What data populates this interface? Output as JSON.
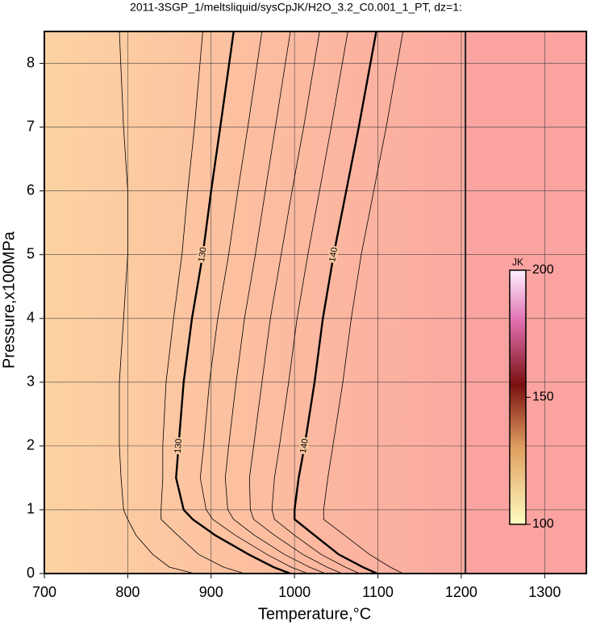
{
  "chart_data": {
    "type": "contour",
    "title": "2011-3SGP_1/meltsliquid/sysCpJK/H2O_3.2_C0.001_1_PT, dz=1:",
    "xlabel": "Temperature,°C",
    "ylabel": "Pressure,x100MPa",
    "xlim": [
      700,
      1350
    ],
    "ylim": [
      0,
      8.5
    ],
    "xticks": [
      700,
      800,
      900,
      1000,
      1100,
      1200,
      1300
    ],
    "yticks": [
      0,
      1,
      2,
      3,
      4,
      5,
      6,
      7,
      8
    ],
    "grid": true,
    "boundary_x": 1205,
    "contours": [
      {
        "level": 125,
        "bold": false,
        "y": [
          8.5,
          7,
          6,
          5,
          4,
          3,
          2,
          1.5,
          1,
          0.85,
          0.6,
          0.3,
          0.1,
          0
        ],
        "x": [
          790,
          795,
          800,
          800,
          795,
          790,
          790,
          792,
          795,
          800,
          810,
          830,
          850,
          880
        ]
      },
      {
        "level": 128,
        "bold": false,
        "y": [
          8.5,
          7,
          6,
          5,
          4,
          3,
          2,
          1.5,
          1,
          0.85,
          0.6,
          0.3,
          0.1,
          0
        ],
        "x": [
          890,
          880,
          872,
          865,
          855,
          846,
          842,
          842,
          840,
          840,
          860,
          885,
          915,
          940
        ]
      },
      {
        "level": 130,
        "bold": true,
        "label": "130",
        "y": [
          8.5,
          7,
          6,
          5,
          4,
          3,
          2,
          1.5,
          1,
          0.85,
          0.6,
          0.3,
          0.1,
          0
        ],
        "x": [
          927,
          911,
          900,
          890,
          877,
          867,
          861,
          858,
          867,
          878,
          905,
          945,
          975,
          995
        ]
      },
      {
        "level": 132,
        "bold": false,
        "y": [
          8.5,
          7,
          6,
          5,
          4,
          3,
          2,
          1.5,
          1,
          0.85,
          0.6,
          0.3,
          0.1,
          0
        ],
        "x": [
          961,
          944,
          932,
          921,
          908,
          898,
          891,
          887,
          894,
          902,
          929,
          967,
          996,
          1016
        ]
      },
      {
        "level": 134,
        "bold": false,
        "y": [
          8.5,
          7,
          6,
          5,
          4,
          3,
          2,
          1.5,
          1,
          0.85,
          0.6,
          0.3,
          0.1,
          0
        ],
        "x": [
          995,
          977,
          965,
          953,
          940,
          930,
          921,
          917,
          920,
          927,
          952,
          988,
          1018,
          1037
        ]
      },
      {
        "level": 136,
        "bold": false,
        "y": [
          8.5,
          7,
          6,
          5,
          4,
          3,
          2,
          1.5,
          1,
          0.85,
          0.6,
          0.3,
          0.1,
          0
        ],
        "x": [
          1030,
          1011,
          997,
          984,
          971,
          961,
          951,
          946,
          947,
          951,
          976,
          1010,
          1039,
          1057
        ]
      },
      {
        "level": 138,
        "bold": false,
        "y": [
          8.5,
          7,
          6,
          5,
          4,
          3,
          2,
          1.5,
          1,
          0.85,
          0.6,
          0.3,
          0.1,
          0
        ],
        "x": [
          1064,
          1044,
          1030,
          1016,
          1003,
          993,
          982,
          976,
          973,
          976,
          1000,
          1032,
          1061,
          1078
        ]
      },
      {
        "level": 140,
        "bold": true,
        "label": "140",
        "y": [
          8.5,
          7,
          6,
          5,
          4,
          3,
          2,
          1.5,
          1,
          0.85,
          0.6,
          0.3,
          0.1,
          0
        ],
        "x": [
          1098,
          1077,
          1062,
          1047,
          1034,
          1024,
          1012,
          1005,
          1000,
          1000,
          1024,
          1053,
          1082,
          1099
        ]
      },
      {
        "level": 142,
        "bold": false,
        "y": [
          8.5,
          7,
          6,
          5,
          4,
          3,
          2,
          1.5,
          1,
          0.85,
          0.6,
          0.3,
          0.1,
          0
        ],
        "x": [
          1130,
          1110,
          1095,
          1080,
          1068,
          1058,
          1046,
          1040,
          1035,
          1035,
          1060,
          1090,
          1115,
          1130
        ]
      }
    ],
    "colorbar": {
      "label": "JK",
      "lim": [
        100,
        200
      ],
      "ticks": [
        100,
        150,
        200
      ]
    }
  }
}
